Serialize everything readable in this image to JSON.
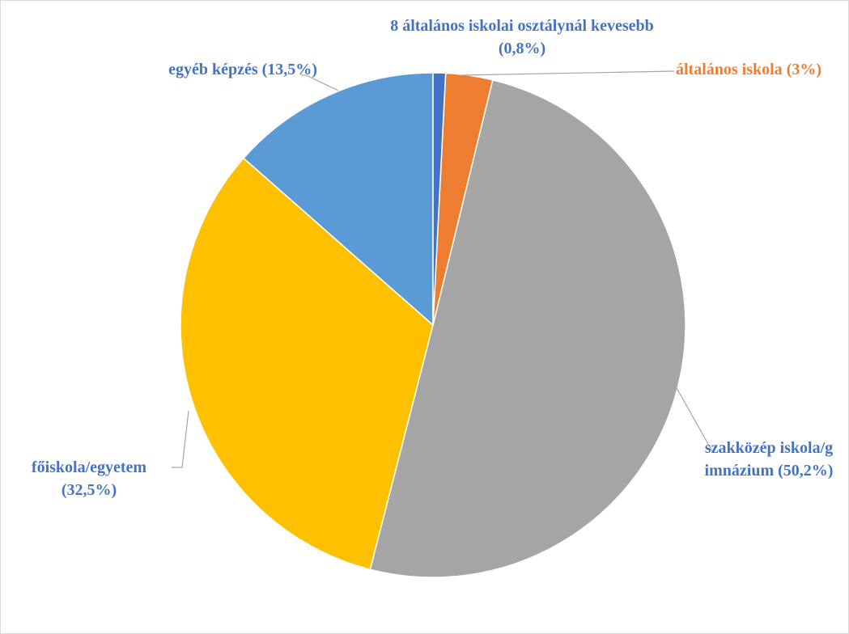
{
  "chart_data": {
    "type": "pie",
    "categories": [
      "8 általános iskolai osztálynál kevesebb",
      "általános iskola",
      "szakközép iskola/gimnázium",
      "főiskola/egyetem",
      "egyéb képzés"
    ],
    "values": [
      0.8,
      3,
      50.2,
      32.5,
      13.5
    ],
    "value_labels": [
      "(0,8%)",
      "(3%)",
      "(50,2%)",
      "(32,5%)",
      "(13,5%)"
    ],
    "colors": [
      "#4472c4",
      "#ed7d31",
      "#a5a5a5",
      "#ffc000",
      "#5b9bd5"
    ],
    "label_colors": [
      "#4472c4",
      "#ed7d31",
      "#4472c4",
      "#4472c4",
      "#4472c4"
    ]
  }
}
